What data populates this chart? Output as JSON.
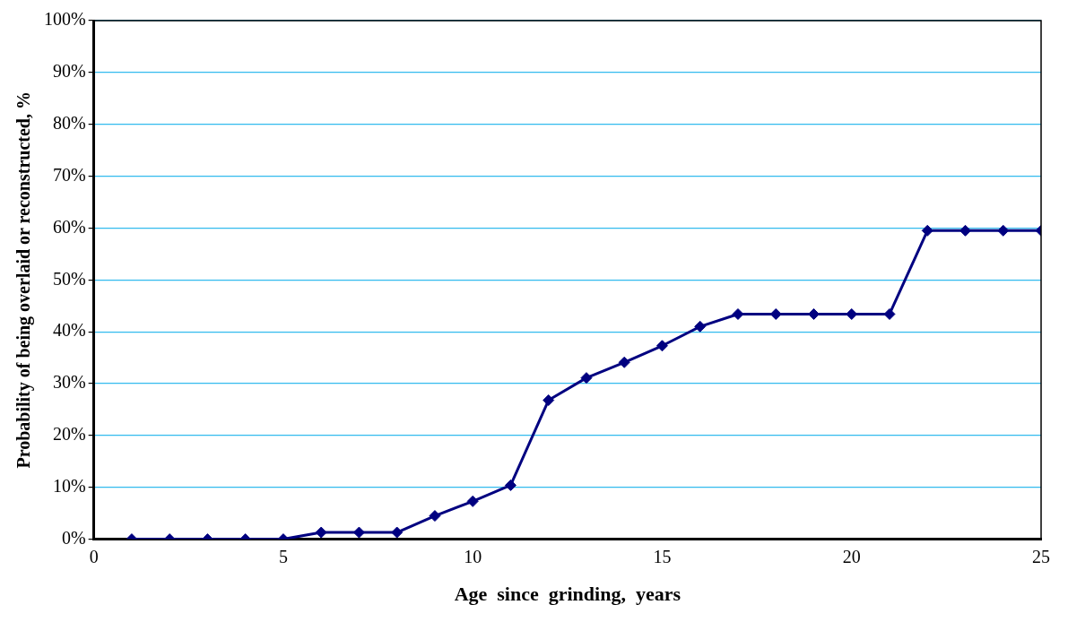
{
  "chart_data": {
    "type": "line",
    "xlabel": "Age  since  grinding,  years",
    "ylabel": "Probability of being overlaid or reconstructed, %",
    "x": [
      1,
      2,
      3,
      4,
      5,
      6,
      7,
      8,
      9,
      10,
      11,
      12,
      13,
      14,
      15,
      16,
      17,
      18,
      19,
      20,
      21,
      22,
      23,
      24,
      25
    ],
    "series": [
      {
        "color": "#000080",
        "values": [
          0,
          0,
          0,
          0,
          0,
          1.3,
          1.3,
          1.3,
          4.5,
          7.3,
          10.4,
          26.8,
          31.1,
          34.1,
          37.3,
          41,
          43.4,
          43.4,
          43.4,
          43.4,
          43.4,
          59.5,
          59.5,
          59.5,
          59.5
        ]
      }
    ],
    "xlim": [
      0,
      25
    ],
    "xticks": [
      0,
      5,
      10,
      15,
      20,
      25
    ],
    "ylim": [
      0,
      100
    ],
    "yticks": [
      {
        "value": 0,
        "label": "0%"
      },
      {
        "value": 10,
        "label": "10%"
      },
      {
        "value": 20,
        "label": "20%"
      },
      {
        "value": 30,
        "label": "30%"
      },
      {
        "value": 40,
        "label": "40%"
      },
      {
        "value": 50,
        "label": "50%"
      },
      {
        "value": 60,
        "label": "60%"
      },
      {
        "value": 70,
        "label": "70%"
      },
      {
        "value": 80,
        "label": "80%"
      },
      {
        "value": 90,
        "label": "90%"
      },
      {
        "value": 100,
        "label": "100%"
      }
    ],
    "grid": "y",
    "legend": false,
    "marker": "diamond",
    "line_style": "solid"
  }
}
